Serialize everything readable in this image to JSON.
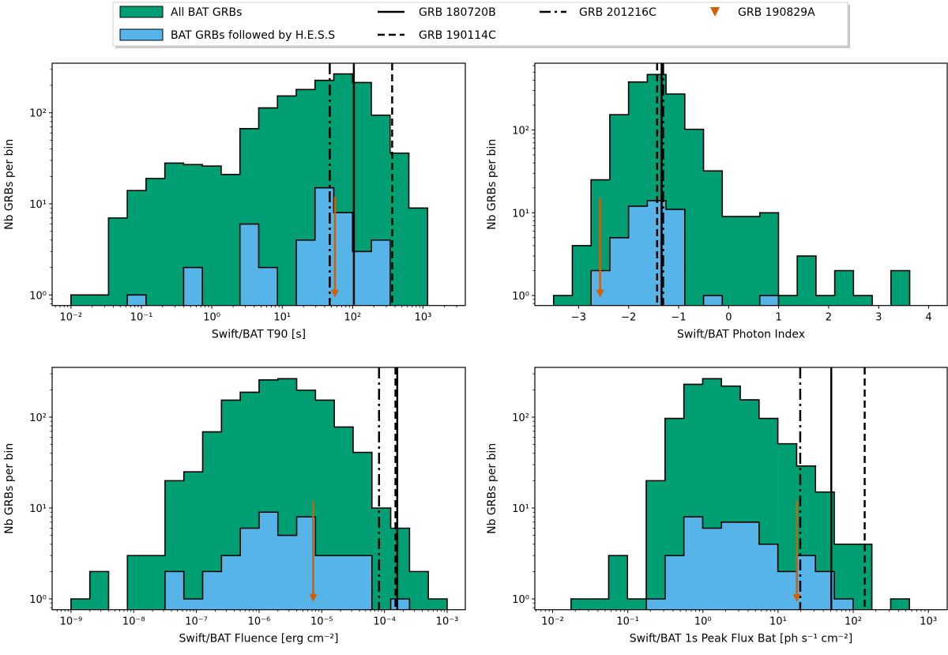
{
  "colors": {
    "all": "#009E73",
    "hess": "#56B4E9",
    "arrow": "#D55E00",
    "edge": "#000000"
  },
  "legend": {
    "items": [
      {
        "label": "All BAT GRBs",
        "kind": "patch",
        "color": "#009E73"
      },
      {
        "label": "BAT GRBs followed by H.E.S.S",
        "kind": "patch",
        "color": "#56B4E9"
      },
      {
        "label": "GRB 180720B",
        "kind": "line",
        "style": "solid"
      },
      {
        "label": "GRB 190114C",
        "kind": "line",
        "style": "dashed"
      },
      {
        "label": "GRB 201216C",
        "kind": "line",
        "style": "dashdot"
      },
      {
        "label": "GRB 190829A",
        "kind": "marker",
        "style": "down-triangle",
        "color": "#D55E00"
      }
    ]
  },
  "chart_data": [
    {
      "type": "histogram",
      "xlabel": "Swift/BAT T90 [s]",
      "ylabel": "Nb GRBs per bin",
      "xscale": "log",
      "yscale": "log",
      "xlim": [
        0.0054,
        3980
      ],
      "ylim": [
        0.765,
        350
      ],
      "bins": {
        "start": 0.01,
        "end": 1161,
        "count": 19
      },
      "all": [
        1,
        1,
        7,
        14,
        19,
        28,
        27,
        26,
        21,
        67,
        113,
        153,
        180,
        227,
        267,
        215,
        94,
        36,
        9
      ],
      "hess": [
        0,
        0,
        0,
        1,
        0,
        0,
        2,
        0,
        0,
        6,
        2,
        0,
        4,
        15,
        8,
        3,
        4,
        0,
        0
      ],
      "xticks": [
        {
          "v": 0.01,
          "label": "10⁻²"
        },
        {
          "v": 0.1,
          "label": "10⁻¹"
        },
        {
          "v": 1,
          "label": "10⁰"
        },
        {
          "v": 10,
          "label": "10¹"
        },
        {
          "v": 100,
          "label": "10²"
        },
        {
          "v": 1000,
          "label": "10³"
        }
      ],
      "yticks": [
        {
          "v": 1,
          "label": "10⁰"
        },
        {
          "v": 10,
          "label": "10¹"
        },
        {
          "v": 100,
          "label": "10²"
        }
      ],
      "vlines": [
        {
          "grb": "GRB 180720B",
          "x": 104,
          "style": "solid"
        },
        {
          "grb": "GRB 190114C",
          "x": 364,
          "style": "dashed"
        },
        {
          "grb": "GRB 201216C",
          "x": 47.3,
          "style": "dashdot"
        }
      ],
      "upper_limit": {
        "grb": "GRB 190829A",
        "x": 56,
        "y": 12
      }
    },
    {
      "type": "histogram",
      "xlabel": "Swift/BAT Photon Index",
      "ylabel": "Nb GRBs per bin",
      "xscale": "linear",
      "yscale": "log",
      "xlim": [
        -3.875,
        4.37
      ],
      "ylim": [
        0.757,
        641
      ],
      "bins": {
        "start": -3.5,
        "end": 3.62,
        "count": 19
      },
      "all": [
        1,
        4,
        25,
        153,
        380,
        468,
        272,
        102,
        32,
        9,
        9,
        10,
        1,
        3,
        1,
        2,
        1,
        0,
        2
      ],
      "hess": [
        0,
        0,
        2,
        5,
        12,
        14,
        11,
        0,
        1,
        0,
        0,
        1,
        0,
        0,
        0,
        0,
        0,
        0,
        0
      ],
      "xticks": [
        {
          "v": -3,
          "label": "−3"
        },
        {
          "v": -2,
          "label": "−2"
        },
        {
          "v": -1,
          "label": "−1"
        },
        {
          "v": 0,
          "label": "0"
        },
        {
          "v": 1,
          "label": "1"
        },
        {
          "v": 2,
          "label": "2"
        },
        {
          "v": 3,
          "label": "3"
        },
        {
          "v": 4,
          "label": "4"
        }
      ],
      "yticks": [
        {
          "v": 1,
          "label": "10⁰"
        },
        {
          "v": 10,
          "label": "10¹"
        },
        {
          "v": 100,
          "label": "10²"
        }
      ],
      "vlines": [
        {
          "grb": "GRB 180720B",
          "x": -1.34,
          "style": "solid"
        },
        {
          "grb": "GRB 190114C",
          "x": -1.43,
          "style": "dashed"
        },
        {
          "grb": "GRB 201216C",
          "x": -1.31,
          "style": "dashdot"
        }
      ],
      "upper_limit": {
        "grb": "GRB 190829A",
        "x": -2.57,
        "y": 15
      }
    },
    {
      "type": "histogram",
      "xlabel": "Swift/BAT Fluence [erg cm⁻²]",
      "ylabel": "Nb GRBs per bin",
      "xscale": "log",
      "yscale": "log",
      "xlim": [
        5e-10,
        0.00195
      ],
      "ylim": [
        0.76,
        353
      ],
      "bins": {
        "start": 1e-09,
        "end": 0.001,
        "count": 20
      },
      "all": [
        1,
        2,
        0,
        3,
        3,
        20,
        25,
        69,
        154,
        188,
        257,
        265,
        198,
        154,
        78,
        41,
        10,
        6,
        2,
        1
      ],
      "hess": [
        0,
        0,
        0,
        0,
        0,
        2,
        1,
        2,
        3,
        6,
        9,
        5,
        8,
        3,
        3,
        3,
        0,
        1,
        0,
        0
      ],
      "xticks": [
        {
          "v": 1e-09,
          "label": "10⁻⁹"
        },
        {
          "v": 1e-08,
          "label": "10⁻⁸"
        },
        {
          "v": 1e-07,
          "label": "10⁻⁷"
        },
        {
          "v": 1e-06,
          "label": "10⁻⁶"
        },
        {
          "v": 1e-05,
          "label": "10⁻⁵"
        },
        {
          "v": 0.0001,
          "label": "10⁻⁴"
        },
        {
          "v": 0.001,
          "label": "10⁻³"
        }
      ],
      "yticks": [
        {
          "v": 1,
          "label": "10⁰"
        },
        {
          "v": 10,
          "label": "10¹"
        },
        {
          "v": 100,
          "label": "10²"
        }
      ],
      "vlines": [
        {
          "grb": "GRB 180720B",
          "x": 0.00016,
          "style": "solid"
        },
        {
          "grb": "GRB 190114C",
          "x": 0.00015,
          "style": "dashed"
        },
        {
          "grb": "GRB 201216C",
          "x": 8.2e-05,
          "style": "dashdot"
        }
      ],
      "upper_limit": {
        "grb": "GRB 190829A",
        "x": 7.3e-06,
        "y": 12
      }
    },
    {
      "type": "histogram",
      "xlabel": "Swift/BAT 1s Peak Flux Bat [ph s⁻¹ cm⁻²]",
      "ylabel": "Nb GRBs per bin",
      "xscale": "log",
      "yscale": "log",
      "xlim": [
        0.0058,
        1780
      ],
      "ylim": [
        0.76,
        353
      ],
      "bins": {
        "start": 0.0176,
        "end": 560,
        "count": 18
      },
      "all": [
        1,
        1,
        3,
        1,
        20,
        97,
        230,
        265,
        220,
        155,
        97,
        51,
        29,
        15,
        4,
        4,
        0,
        1
      ],
      "hess": [
        0,
        0,
        0,
        0,
        1,
        3,
        8,
        6,
        7,
        7,
        4,
        2,
        3,
        2,
        1,
        0,
        0,
        0
      ],
      "xticks": [
        {
          "v": 0.01,
          "label": "10⁻²"
        },
        {
          "v": 0.1,
          "label": "10⁻¹"
        },
        {
          "v": 1,
          "label": "10⁰"
        },
        {
          "v": 10,
          "label": "10¹"
        },
        {
          "v": 100,
          "label": "10²"
        },
        {
          "v": 1000,
          "label": "10³"
        }
      ],
      "yticks": [
        {
          "v": 1,
          "label": "10⁰"
        },
        {
          "v": 10,
          "label": "10¹"
        },
        {
          "v": 100,
          "label": "10²"
        }
      ],
      "vlines": [
        {
          "grb": "GRB 180720B",
          "x": 51,
          "style": "solid"
        },
        {
          "grb": "GRB 190114C",
          "x": 142,
          "style": "dashed"
        },
        {
          "grb": "GRB 201216C",
          "x": 19.7,
          "style": "dashdot"
        }
      ],
      "upper_limit": {
        "grb": "GRB 190829A",
        "x": 17.8,
        "y": 12
      }
    }
  ]
}
